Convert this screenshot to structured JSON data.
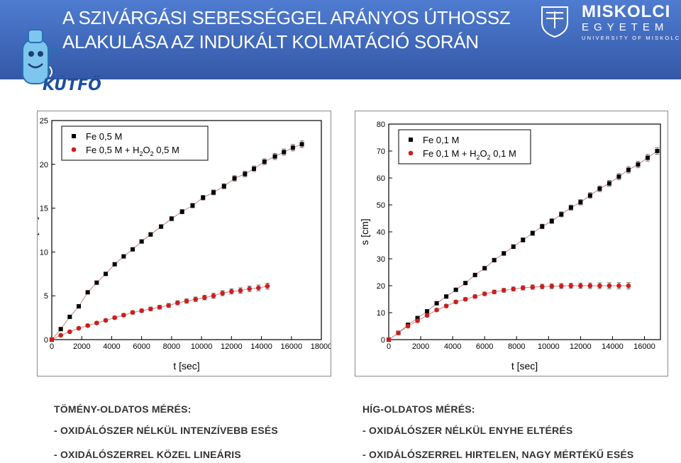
{
  "header": {
    "title_line1": "A SZIVÁRGÁSI SEBESSÉGGEL ARÁNYOS ÚTHOSSZ",
    "title_line2": "ALAKULÁSA AZ INDUKÁLT KOLMATÁCIÓ SORÁN",
    "logo_text": "KÚTFŐ",
    "university_line1": "MISKOLCI",
    "university_line2": "EGYETEM",
    "university_line3": "UNIVERSITY OF MISKOLC",
    "colors": {
      "banner": "#3a63b5",
      "title": "#ffffff"
    }
  },
  "notes": {
    "left_heading": "TÖMÉNY-OLDATOS MÉRÉS:",
    "left_item1": "- OXIDÁLÓSZER NÉLKÜL INTENZÍVEBB ESÉS",
    "left_item2": "- OXIDÁLÓSZERREL KÖZEL LINEÁRIS",
    "right_heading": "HÍG-OLDATOS MÉRÉS:",
    "right_item1": "- OXIDÁLÓSZER NÉLKÜL ENYHE ELTÉRÉS",
    "right_item2": "- OXIDÁLÓSZERREL HIRTELEN, NAGY MÉRTÉKŰ ESÉS"
  },
  "chart_data": [
    {
      "type": "scatter",
      "xlabel": "t [sec]",
      "ylabel": "s [cm]",
      "xlim": [
        0,
        18000
      ],
      "ylim": [
        0,
        25
      ],
      "xticks": [
        0,
        2000,
        4000,
        6000,
        8000,
        10000,
        12000,
        14000,
        16000,
        18000
      ],
      "yticks": [
        0,
        5,
        10,
        15,
        20,
        25
      ],
      "legend_position": "top-left",
      "series": [
        {
          "name": "Fe 0,5 M",
          "legend_main": "Fe 0,5 M",
          "marker": "square",
          "color": "#000000",
          "x": [
            0,
            600,
            1200,
            1800,
            2400,
            3000,
            3600,
            4200,
            4800,
            5400,
            6000,
            6600,
            7300,
            8000,
            8700,
            9400,
            10100,
            10800,
            11500,
            12200,
            12900,
            13500,
            14200,
            14900,
            15500,
            16100,
            16700
          ],
          "y": [
            0,
            1.2,
            2.6,
            3.8,
            5.4,
            6.5,
            7.5,
            8.6,
            9.5,
            10.3,
            11.2,
            12.0,
            12.9,
            13.8,
            14.6,
            15.3,
            16.2,
            16.8,
            17.5,
            18.4,
            18.9,
            19.5,
            20.3,
            20.9,
            21.4,
            21.9,
            22.3
          ]
        },
        {
          "name": "Fe 0,5 M + H2O2 0,5 M",
          "legend_main": "Fe 0,5 M + H",
          "legend_sub1": "2",
          "legend_mid": "O",
          "legend_sub2": "2",
          "legend_tail": " 0,5 M",
          "marker": "circle",
          "color": "#d01c1c",
          "x": [
            0,
            600,
            1200,
            1800,
            2400,
            3000,
            3600,
            4200,
            4800,
            5400,
            6000,
            6600,
            7200,
            7800,
            8400,
            9000,
            9600,
            10200,
            10800,
            11400,
            12000,
            12600,
            13200,
            13800,
            14400
          ],
          "y": [
            0,
            0.5,
            0.9,
            1.3,
            1.6,
            1.9,
            2.2,
            2.5,
            2.8,
            3.1,
            3.3,
            3.5,
            3.7,
            3.9,
            4.2,
            4.4,
            4.6,
            4.8,
            5.0,
            5.3,
            5.5,
            5.6,
            5.8,
            5.9,
            6.1
          ]
        }
      ]
    },
    {
      "type": "scatter",
      "xlabel": "t [sec]",
      "ylabel": "s [cm]",
      "xlim": [
        0,
        17000
      ],
      "ylim": [
        0,
        80
      ],
      "xticks": [
        0,
        2000,
        4000,
        6000,
        8000,
        10000,
        12000,
        14000,
        16000
      ],
      "yticks": [
        0,
        10,
        20,
        30,
        40,
        50,
        60,
        70,
        80
      ],
      "legend_position": "top-left",
      "series": [
        {
          "name": "Fe 0,1 M",
          "legend_main": "Fe 0,1 M",
          "marker": "square",
          "color": "#000000",
          "x": [
            0,
            600,
            1200,
            1800,
            2400,
            3000,
            3600,
            4200,
            4800,
            5400,
            6000,
            6600,
            7200,
            7800,
            8400,
            9000,
            9600,
            10200,
            10800,
            11400,
            12000,
            12600,
            13200,
            13800,
            14400,
            15000,
            15600,
            16200,
            16800
          ],
          "y": [
            0,
            2.5,
            5.5,
            8,
            10.5,
            13.5,
            16,
            18.5,
            21,
            24,
            26.5,
            29.5,
            32,
            34.5,
            37,
            39.5,
            42,
            44,
            46.5,
            49,
            51,
            53.5,
            56,
            58,
            60.5,
            63,
            65,
            67.5,
            70
          ]
        },
        {
          "name": "Fe 0,1 M + H2O2 0,1 M",
          "legend_main": "Fe 0,1 M + H",
          "legend_sub1": "2",
          "legend_mid": "O",
          "legend_sub2": "2",
          "legend_tail": " 0,1 M",
          "marker": "circle",
          "color": "#d01c1c",
          "x": [
            0,
            600,
            1200,
            1800,
            2400,
            3000,
            3600,
            4200,
            4800,
            5400,
            6000,
            6600,
            7200,
            7800,
            8400,
            9000,
            9600,
            10200,
            10800,
            11400,
            12000,
            12600,
            13200,
            13800,
            14400,
            15000
          ],
          "y": [
            0,
            2.5,
            5,
            7,
            9,
            11,
            12.5,
            14,
            15,
            16,
            17,
            17.7,
            18.3,
            18.8,
            19.2,
            19.5,
            19.7,
            19.8,
            19.9,
            20,
            20,
            20,
            20,
            20,
            20,
            20
          ]
        }
      ]
    }
  ]
}
